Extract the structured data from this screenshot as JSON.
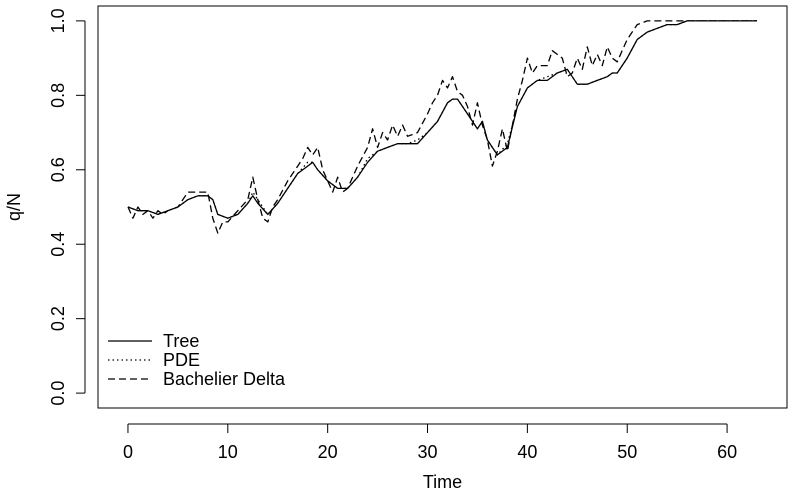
{
  "chart_data": {
    "type": "line",
    "title": "",
    "xlabel": "Time",
    "ylabel": "q/N",
    "xlim": [
      -3,
      66
    ],
    "ylim": [
      -0.04,
      1.04
    ],
    "xticks": [
      "0",
      "10",
      "20",
      "30",
      "40",
      "50",
      "60"
    ],
    "yticks": [
      "0.0",
      "0.2",
      "0.4",
      "0.6",
      "0.8",
      "1.0"
    ],
    "grid": false,
    "legend_position": "bottom-left",
    "series": [
      {
        "name": "Tree",
        "style": "solid",
        "x": [
          0,
          1,
          2,
          3,
          4,
          5,
          6,
          7,
          8,
          8.5,
          9,
          10,
          11,
          12,
          12.5,
          13,
          14,
          15,
          16,
          17,
          18,
          18.5,
          19,
          20,
          21,
          22,
          23,
          24,
          25,
          26,
          27,
          28,
          29,
          30,
          31,
          32,
          32.5,
          33,
          34,
          35,
          35.5,
          36,
          37,
          38,
          39,
          40,
          41,
          42,
          43,
          44,
          45,
          46,
          47,
          48,
          48.5,
          49,
          50,
          51,
          52,
          53,
          54,
          55,
          56,
          57,
          58,
          59,
          60,
          61,
          62,
          63
        ],
        "y": [
          0.5,
          0.49,
          0.49,
          0.48,
          0.49,
          0.5,
          0.52,
          0.53,
          0.53,
          0.52,
          0.48,
          0.47,
          0.48,
          0.51,
          0.53,
          0.51,
          0.48,
          0.51,
          0.55,
          0.59,
          0.61,
          0.62,
          0.6,
          0.57,
          0.55,
          0.55,
          0.58,
          0.62,
          0.65,
          0.66,
          0.67,
          0.67,
          0.67,
          0.7,
          0.73,
          0.78,
          0.79,
          0.79,
          0.75,
          0.71,
          0.73,
          0.68,
          0.64,
          0.66,
          0.77,
          0.82,
          0.84,
          0.84,
          0.86,
          0.87,
          0.83,
          0.83,
          0.84,
          0.85,
          0.86,
          0.86,
          0.9,
          0.95,
          0.97,
          0.98,
          0.99,
          0.99,
          1.0,
          1.0,
          1.0,
          1.0,
          1.0,
          1.0,
          1.0,
          1.0
        ]
      },
      {
        "name": "PDE",
        "style": "dotted",
        "x": [
          0,
          1,
          2,
          3,
          4,
          5,
          6,
          7,
          8,
          8.5,
          9,
          10,
          11,
          12,
          12.5,
          13,
          14,
          15,
          16,
          17,
          18,
          18.5,
          19,
          20,
          21,
          22,
          23,
          24,
          25,
          26,
          27,
          28,
          29,
          30,
          31,
          32,
          32.5,
          33,
          34,
          35,
          35.5,
          36,
          37,
          38,
          39,
          40,
          41,
          42,
          43,
          44,
          45,
          46,
          47,
          48,
          48.5,
          49,
          50,
          51,
          52,
          53,
          54,
          55,
          56,
          57,
          58,
          59,
          60,
          61,
          62,
          63
        ],
        "y": [
          0.5,
          0.49,
          0.49,
          0.48,
          0.49,
          0.5,
          0.52,
          0.53,
          0.53,
          0.52,
          0.48,
          0.47,
          0.48,
          0.51,
          0.54,
          0.52,
          0.48,
          0.51,
          0.55,
          0.59,
          0.62,
          0.62,
          0.6,
          0.57,
          0.55,
          0.55,
          0.58,
          0.63,
          0.65,
          0.66,
          0.67,
          0.67,
          0.68,
          0.7,
          0.73,
          0.78,
          0.79,
          0.79,
          0.75,
          0.71,
          0.73,
          0.68,
          0.64,
          0.67,
          0.77,
          0.82,
          0.84,
          0.85,
          0.86,
          0.87,
          0.83,
          0.83,
          0.84,
          0.85,
          0.86,
          0.86,
          0.9,
          0.95,
          0.97,
          0.98,
          0.99,
          0.99,
          1.0,
          1.0,
          1.0,
          1.0,
          1.0,
          1.0,
          1.0,
          1.0
        ]
      },
      {
        "name": "Bachelier Delta",
        "style": "dashed",
        "x": [
          0,
          0.5,
          1,
          1.5,
          2,
          2.5,
          3,
          3.5,
          4,
          5,
          6,
          7,
          8,
          8.5,
          9,
          9.5,
          10,
          11,
          12,
          12.5,
          13,
          13.5,
          14,
          14.5,
          15,
          16,
          17,
          17.5,
          18,
          18.5,
          19,
          19.5,
          20,
          20.5,
          21,
          21.5,
          22,
          23,
          24,
          24.5,
          25,
          25.5,
          26,
          26.5,
          27,
          27.5,
          28,
          29,
          30,
          30.5,
          31,
          31.5,
          32,
          32.5,
          33,
          33.5,
          34,
          34.5,
          35,
          35.5,
          36,
          36.5,
          37,
          37.5,
          38,
          39,
          39.5,
          40,
          40.5,
          41,
          42,
          42.5,
          43,
          43.5,
          44,
          44.5,
          45,
          45.5,
          46,
          46.5,
          47,
          47.5,
          48,
          48.5,
          49,
          50,
          51,
          52,
          53,
          54,
          55,
          56,
          57,
          58,
          59,
          60,
          61,
          62,
          63
        ],
        "y": [
          0.5,
          0.47,
          0.5,
          0.48,
          0.49,
          0.47,
          0.49,
          0.48,
          0.49,
          0.5,
          0.54,
          0.54,
          0.54,
          0.47,
          0.43,
          0.46,
          0.46,
          0.49,
          0.52,
          0.58,
          0.52,
          0.47,
          0.46,
          0.5,
          0.52,
          0.57,
          0.61,
          0.63,
          0.66,
          0.64,
          0.66,
          0.6,
          0.57,
          0.54,
          0.58,
          0.54,
          0.55,
          0.61,
          0.66,
          0.71,
          0.66,
          0.7,
          0.68,
          0.72,
          0.69,
          0.72,
          0.69,
          0.7,
          0.75,
          0.78,
          0.8,
          0.84,
          0.82,
          0.85,
          0.81,
          0.8,
          0.77,
          0.72,
          0.78,
          0.72,
          0.68,
          0.61,
          0.65,
          0.71,
          0.65,
          0.79,
          0.84,
          0.9,
          0.86,
          0.88,
          0.88,
          0.92,
          0.91,
          0.9,
          0.85,
          0.86,
          0.9,
          0.87,
          0.93,
          0.88,
          0.91,
          0.88,
          0.93,
          0.9,
          0.89,
          0.95,
          0.99,
          1.0,
          1.0,
          1.0,
          1.0,
          1.0,
          1.0,
          1.0,
          1.0,
          1.0,
          1.0,
          1.0,
          1.0
        ]
      }
    ]
  }
}
